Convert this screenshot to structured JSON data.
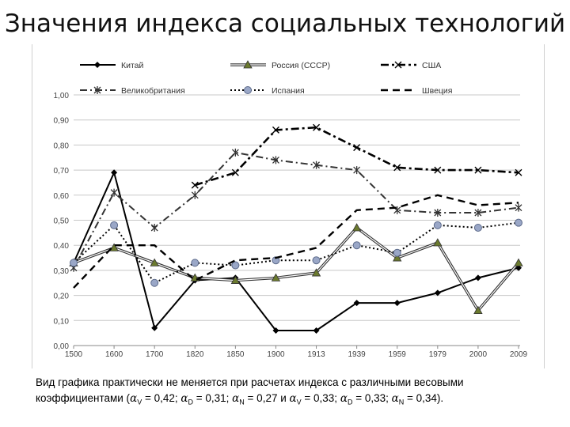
{
  "title": "Значения индекса социальных технологий",
  "caption": {
    "line1": "Вид графика практически не меняется при расчетах индекса с различными весовыми",
    "line2_prefix": "коэффициентами (",
    "alpha": "α",
    "weights": [
      {
        "sub": "V",
        "text": " = 0,42; "
      },
      {
        "sub": "D",
        "text": " = 0,31; "
      },
      {
        "sub": "N",
        "text": " = 0,27 и "
      },
      {
        "sub": "V",
        "text": " = 0,33; "
      },
      {
        "sub": "D",
        "text": " = 0,33; "
      },
      {
        "sub": "N",
        "text": " = 0,34)."
      }
    ]
  },
  "chart_data": {
    "type": "line",
    "title": "",
    "xlabel": "",
    "ylabel": "",
    "categories": [
      "1500",
      "1600",
      "1700",
      "1820",
      "1850",
      "1900",
      "1913",
      "1939",
      "1959",
      "1979",
      "2000",
      "2009"
    ],
    "ylim": [
      0,
      1
    ],
    "yticks": [
      "0,00",
      "0,10",
      "0,20",
      "0,30",
      "0,40",
      "0,50",
      "0,60",
      "0,70",
      "0,80",
      "0,90",
      "1,00"
    ],
    "grid": true,
    "legend_position": "top",
    "series": [
      {
        "name": "Китай",
        "style": "solid",
        "color": "#000000",
        "marker": "diamond",
        "values": [
          0.33,
          0.69,
          0.07,
          0.26,
          0.27,
          0.06,
          0.06,
          0.17,
          0.17,
          0.21,
          0.27,
          0.31
        ]
      },
      {
        "name": "Россия (СССР)",
        "style": "double",
        "color": "#333333",
        "marker": "triangle",
        "values": [
          0.33,
          0.39,
          0.33,
          0.27,
          0.26,
          0.27,
          0.29,
          0.47,
          0.35,
          0.41,
          0.14,
          0.33
        ]
      },
      {
        "name": "США",
        "style": "dashdot",
        "color": "#000000",
        "marker": "x",
        "values": [
          null,
          null,
          null,
          0.64,
          0.69,
          0.86,
          0.87,
          0.79,
          0.71,
          0.7,
          0.7,
          0.69
        ]
      },
      {
        "name": "Великобритания",
        "style": "dashdot-light",
        "color": "#333333",
        "marker": "star",
        "values": [
          0.31,
          0.61,
          0.47,
          0.6,
          0.77,
          0.74,
          0.72,
          0.7,
          0.54,
          0.53,
          0.53,
          0.55
        ]
      },
      {
        "name": "Испания",
        "style": "dotted",
        "color": "#000000",
        "marker": "circle",
        "values": [
          0.33,
          0.48,
          0.25,
          0.33,
          0.32,
          0.34,
          0.34,
          0.4,
          0.37,
          0.48,
          0.47,
          0.49
        ]
      },
      {
        "name": "Швеция",
        "style": "dashed",
        "color": "#000000",
        "marker": "none",
        "values": [
          0.23,
          0.4,
          0.4,
          0.26,
          0.34,
          0.35,
          0.39,
          0.54,
          0.55,
          0.6,
          0.56,
          0.57
        ]
      }
    ]
  }
}
